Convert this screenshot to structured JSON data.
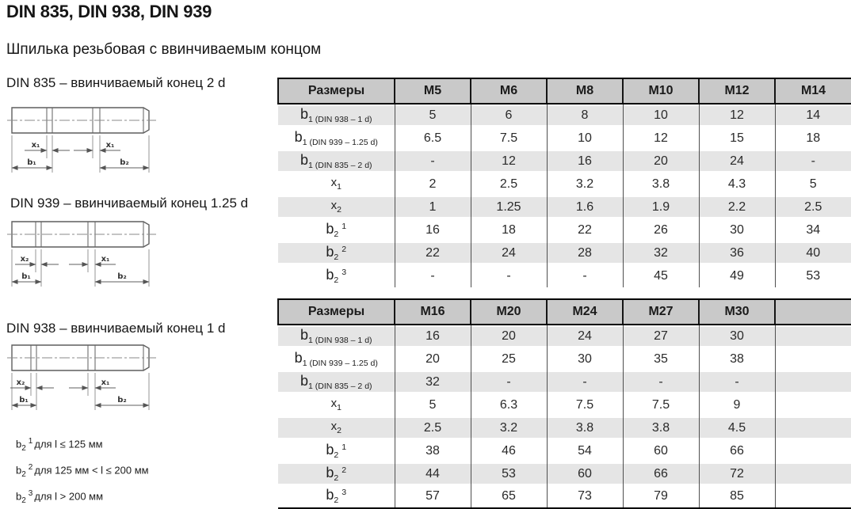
{
  "page": {
    "title": "DIN 835, DIN 938, DIN 939",
    "subtitle": "Шпилька резьбовая с ввинчиваемым концом"
  },
  "colors": {
    "header_bg": "#c9c9c9",
    "shaded_row_bg": "#e5e5e5",
    "border": "#000000",
    "grid_line": "#4f4f4f"
  },
  "diagrams": [
    {
      "caption": "DIN 835 – ввинчиваемый конец 2 d",
      "labels": {
        "left_x": "x₁",
        "right_x": "x₁",
        "left_b": "b₁",
        "right_b": "b₂"
      }
    },
    {
      "caption": "DIN 939 – ввинчиваемый конец 1.25 d",
      "labels": {
        "left_x": "x₂",
        "right_x": "x₁",
        "left_b": "b₁",
        "right_b": "b₂"
      }
    },
    {
      "caption": "DIN 938 – ввинчиваемый конец 1 d",
      "labels": {
        "left_x": "x₂",
        "right_x": "x₁",
        "left_b": "b₁",
        "right_b": "b₂"
      }
    }
  ],
  "footnotes": [
    {
      "base": "b",
      "sub": "2",
      "sup": "1",
      "text": "для l ≤ 125 мм"
    },
    {
      "base": "b",
      "sub": "2",
      "sup": "2",
      "text": "для 125 мм < l ≤ 200 мм"
    },
    {
      "base": "b",
      "sub": "2",
      "sup": "3",
      "text": "для l > 200 мм"
    }
  ],
  "tables": [
    {
      "columns": [
        "Размеры",
        "M5",
        "M6",
        "M8",
        "M10",
        "M12",
        "M14"
      ],
      "rows": [
        {
          "label": {
            "base": "b",
            "sub": "1",
            "note": "(DIN 938 – 1 d)"
          },
          "shaded": true,
          "values": [
            "5",
            "6",
            "8",
            "10",
            "12",
            "14"
          ]
        },
        {
          "label": {
            "base": "b",
            "sub": "1",
            "note": "(DIN 939 – 1.25 d)"
          },
          "shaded": false,
          "values": [
            "6.5",
            "7.5",
            "10",
            "12",
            "15",
            "18"
          ]
        },
        {
          "label": {
            "base": "b",
            "sub": "1",
            "note": "(DIN 835 – 2 d)"
          },
          "shaded": true,
          "values": [
            "-",
            "12",
            "16",
            "20",
            "24",
            "-"
          ]
        },
        {
          "label": {
            "base": "x",
            "sub": "1"
          },
          "shaded": false,
          "values": [
            "2",
            "2.5",
            "3.2",
            "3.8",
            "4.3",
            "5"
          ]
        },
        {
          "label": {
            "base": "x",
            "sub": "2"
          },
          "shaded": true,
          "values": [
            "1",
            "1.25",
            "1.6",
            "1.9",
            "2.2",
            "2.5"
          ]
        },
        {
          "label": {
            "base": "b",
            "sub": "2",
            "sup": "1"
          },
          "shaded": false,
          "values": [
            "16",
            "18",
            "22",
            "26",
            "30",
            "34"
          ]
        },
        {
          "label": {
            "base": "b",
            "sub": "2",
            "sup": "2"
          },
          "shaded": true,
          "values": [
            "22",
            "24",
            "28",
            "32",
            "36",
            "40"
          ]
        },
        {
          "label": {
            "base": "b",
            "sub": "2",
            "sup": "3"
          },
          "shaded": false,
          "values": [
            "-",
            "-",
            "-",
            "45",
            "49",
            "53"
          ]
        }
      ]
    },
    {
      "columns": [
        "Размеры",
        "M16",
        "M20",
        "M24",
        "M27",
        "M30",
        ""
      ],
      "rows": [
        {
          "label": {
            "base": "b",
            "sub": "1",
            "note": "(DIN 938 – 1 d)"
          },
          "shaded": true,
          "values": [
            "16",
            "20",
            "24",
            "27",
            "30",
            ""
          ]
        },
        {
          "label": {
            "base": "b",
            "sub": "1",
            "note": "(DIN 939 – 1.25 d)"
          },
          "shaded": false,
          "values": [
            "20",
            "25",
            "30",
            "35",
            "38",
            ""
          ]
        },
        {
          "label": {
            "base": "b",
            "sub": "1",
            "note": "(DIN 835 – 2 d)"
          },
          "shaded": true,
          "values": [
            "32",
            "-",
            "-",
            "-",
            "-",
            ""
          ]
        },
        {
          "label": {
            "base": "x",
            "sub": "1"
          },
          "shaded": false,
          "values": [
            "5",
            "6.3",
            "7.5",
            "7.5",
            "9",
            ""
          ]
        },
        {
          "label": {
            "base": "x",
            "sub": "2"
          },
          "shaded": true,
          "values": [
            "2.5",
            "3.2",
            "3.8",
            "3.8",
            "4.5",
            ""
          ]
        },
        {
          "label": {
            "base": "b",
            "sub": "2",
            "sup": "1"
          },
          "shaded": false,
          "values": [
            "38",
            "46",
            "54",
            "60",
            "66",
            ""
          ]
        },
        {
          "label": {
            "base": "b",
            "sub": "2",
            "sup": "2"
          },
          "shaded": true,
          "values": [
            "44",
            "53",
            "60",
            "66",
            "72",
            ""
          ]
        },
        {
          "label": {
            "base": "b",
            "sub": "2",
            "sup": "3"
          },
          "shaded": false,
          "values": [
            "57",
            "65",
            "73",
            "79",
            "85",
            ""
          ]
        }
      ]
    }
  ]
}
